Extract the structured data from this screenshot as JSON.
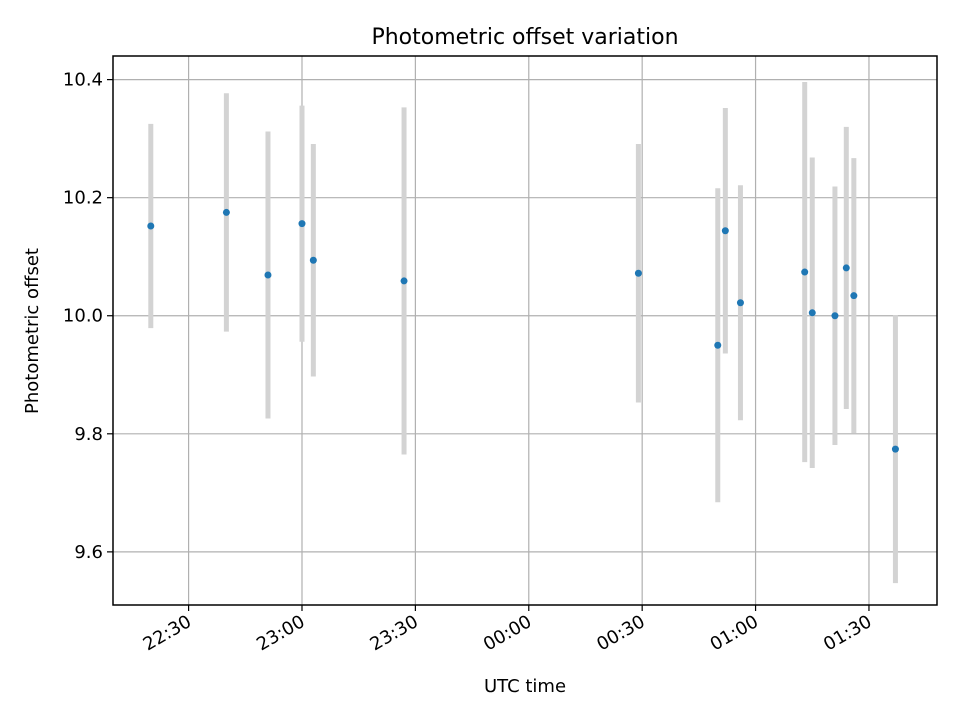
{
  "chart_data": {
    "type": "scatter",
    "title": "Photometric offset variation",
    "xlabel": "UTC time",
    "ylabel": "Photometric offset",
    "x_range": [
      "22:10",
      "01:48"
    ],
    "ylim": [
      9.51,
      10.44
    ],
    "grid": true,
    "error_bar_color": "#d3d3d3",
    "marker_color": "#1f77b4",
    "x_ticks": [
      "22:30",
      "23:00",
      "23:30",
      "00:00",
      "00:30",
      "01:00",
      "01:30"
    ],
    "y_ticks": [
      "9.6",
      "9.8",
      "10.0",
      "10.2",
      "10.4"
    ],
    "points": [
      {
        "x": "22:20",
        "y": 10.152,
        "err": 0.173
      },
      {
        "x": "22:40",
        "y": 10.175,
        "err": 0.202
      },
      {
        "x": "22:51",
        "y": 10.069,
        "err": 0.243
      },
      {
        "x": "23:00",
        "y": 10.156,
        "err": 0.2
      },
      {
        "x": "23:03",
        "y": 10.094,
        "err": 0.197
      },
      {
        "x": "23:27",
        "y": 10.059,
        "err": 0.294
      },
      {
        "x": "00:29",
        "y": 10.072,
        "err": 0.219
      },
      {
        "x": "00:50",
        "y": 9.95,
        "err": 0.266
      },
      {
        "x": "00:52",
        "y": 10.144,
        "err": 0.208
      },
      {
        "x": "00:56",
        "y": 10.022,
        "err": 0.199
      },
      {
        "x": "01:13",
        "y": 10.074,
        "err": 0.322
      },
      {
        "x": "01:15",
        "y": 10.005,
        "err": 0.263
      },
      {
        "x": "01:21",
        "y": 10.0,
        "err": 0.219
      },
      {
        "x": "01:24",
        "y": 10.081,
        "err": 0.239
      },
      {
        "x": "01:26",
        "y": 10.034,
        "err": 0.233
      },
      {
        "x": "01:37",
        "y": 9.774,
        "err": 0.227
      }
    ]
  }
}
